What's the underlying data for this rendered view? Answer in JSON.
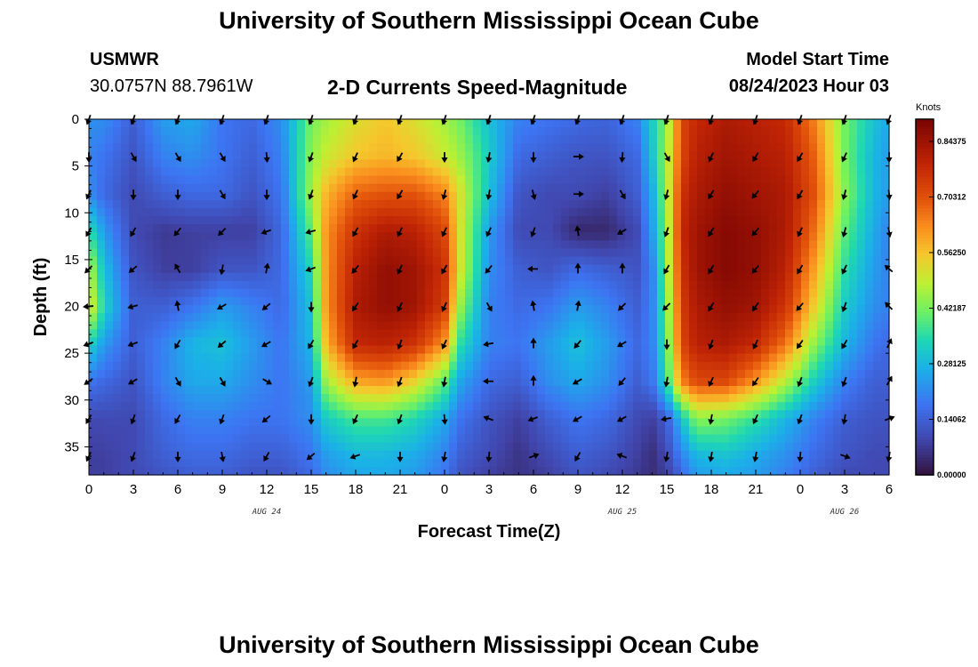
{
  "header": {
    "title": "University of Southern Mississippi Ocean Cube",
    "station": "USMWR",
    "coords": "30.0757N  88.7961W",
    "plot_title": "2-D Currents Speed-Magnitude",
    "model_label": "Model Start Time",
    "model_time": "08/24/2023 Hour 03"
  },
  "footer": {
    "title": "University of Southern Mississippi Ocean Cube"
  },
  "chart_data": {
    "type": "heatmap",
    "subtype": "current speed with direction vectors",
    "title": "2-D Currents Speed-Magnitude",
    "xlabel": "Forecast Time(Z)",
    "ylabel": "Depth (ft)",
    "x_range_hours": [
      0,
      54
    ],
    "y_range_ft": [
      0,
      38
    ],
    "x_ticks": [
      {
        "h": 0,
        "label": "0"
      },
      {
        "h": 3,
        "label": "3"
      },
      {
        "h": 6,
        "label": "6"
      },
      {
        "h": 9,
        "label": "9"
      },
      {
        "h": 12,
        "label": "12"
      },
      {
        "h": 15,
        "label": "15"
      },
      {
        "h": 18,
        "label": "18"
      },
      {
        "h": 21,
        "label": "21"
      },
      {
        "h": 24,
        "label": "0"
      },
      {
        "h": 27,
        "label": "3"
      },
      {
        "h": 30,
        "label": "6"
      },
      {
        "h": 33,
        "label": "9"
      },
      {
        "h": 36,
        "label": "12"
      },
      {
        "h": 39,
        "label": "15"
      },
      {
        "h": 42,
        "label": "18"
      },
      {
        "h": 45,
        "label": "21"
      },
      {
        "h": 48,
        "label": "0"
      },
      {
        "h": 51,
        "label": "3"
      },
      {
        "h": 54,
        "label": "6"
      }
    ],
    "y_ticks": [
      0,
      5,
      10,
      15,
      20,
      25,
      30,
      35
    ],
    "date_labels": [
      {
        "h": 12,
        "label": "AUG 24"
      },
      {
        "h": 36,
        "label": "AUG 25"
      },
      {
        "h": 51,
        "label": "AUG 26"
      }
    ],
    "colorbar": {
      "title": "Knots",
      "min": 0,
      "max": 0.9,
      "ticks": [
        {
          "v": 0.0,
          "label": "0.00000"
        },
        {
          "v": 0.140625,
          "label": "0.14062"
        },
        {
          "v": 0.28125,
          "label": "0.28125"
        },
        {
          "v": 0.421875,
          "label": "0.42187"
        },
        {
          "v": 0.5625,
          "label": "0.56250"
        },
        {
          "v": 0.703125,
          "label": "0.70312"
        },
        {
          "v": 0.84375,
          "label": "0.84375"
        }
      ]
    },
    "speed_hours": [
      0,
      1,
      3,
      5,
      7,
      9,
      11,
      13,
      15,
      16,
      18,
      20,
      22,
      24,
      25,
      27,
      29,
      31,
      33,
      35,
      37,
      38,
      39,
      40,
      41,
      43,
      45,
      47,
      49,
      51,
      53,
      54
    ],
    "speed_depths": [
      0,
      4,
      8,
      12,
      16,
      20,
      24,
      28,
      32,
      36,
      38
    ],
    "speed_knots": [
      [
        0.22,
        0.22,
        0.14,
        0.24,
        0.26,
        0.18,
        0.16,
        0.22,
        0.42,
        0.46,
        0.52,
        0.56,
        0.52,
        0.46,
        0.42,
        0.3,
        0.2,
        0.18,
        0.16,
        0.15,
        0.2,
        0.32,
        0.44,
        0.72,
        0.78,
        0.82,
        0.8,
        0.78,
        0.64,
        0.42,
        0.3,
        0.26
      ],
      [
        0.2,
        0.18,
        0.12,
        0.2,
        0.22,
        0.18,
        0.14,
        0.2,
        0.44,
        0.5,
        0.56,
        0.58,
        0.56,
        0.5,
        0.46,
        0.32,
        0.16,
        0.14,
        0.12,
        0.12,
        0.16,
        0.3,
        0.46,
        0.72,
        0.8,
        0.84,
        0.82,
        0.8,
        0.68,
        0.42,
        0.28,
        0.24
      ],
      [
        0.22,
        0.16,
        0.1,
        0.14,
        0.16,
        0.16,
        0.12,
        0.18,
        0.46,
        0.58,
        0.68,
        0.7,
        0.7,
        0.64,
        0.52,
        0.3,
        0.12,
        0.1,
        0.1,
        0.08,
        0.14,
        0.26,
        0.46,
        0.76,
        0.82,
        0.86,
        0.84,
        0.82,
        0.7,
        0.44,
        0.28,
        0.24
      ],
      [
        0.36,
        0.24,
        0.1,
        0.07,
        0.08,
        0.08,
        0.08,
        0.16,
        0.4,
        0.62,
        0.76,
        0.82,
        0.8,
        0.72,
        0.52,
        0.24,
        0.1,
        0.1,
        0.04,
        0.04,
        0.1,
        0.24,
        0.44,
        0.78,
        0.84,
        0.88,
        0.86,
        0.82,
        0.66,
        0.4,
        0.26,
        0.2
      ],
      [
        0.48,
        0.3,
        0.12,
        0.08,
        0.08,
        0.12,
        0.12,
        0.16,
        0.34,
        0.62,
        0.8,
        0.86,
        0.84,
        0.76,
        0.52,
        0.22,
        0.14,
        0.12,
        0.16,
        0.14,
        0.12,
        0.2,
        0.44,
        0.76,
        0.84,
        0.88,
        0.86,
        0.8,
        0.6,
        0.36,
        0.24,
        0.2
      ],
      [
        0.54,
        0.34,
        0.14,
        0.14,
        0.18,
        0.24,
        0.2,
        0.16,
        0.3,
        0.62,
        0.82,
        0.86,
        0.84,
        0.74,
        0.46,
        0.2,
        0.16,
        0.18,
        0.24,
        0.2,
        0.14,
        0.2,
        0.42,
        0.74,
        0.82,
        0.86,
        0.84,
        0.76,
        0.54,
        0.32,
        0.22,
        0.2
      ],
      [
        0.34,
        0.24,
        0.14,
        0.2,
        0.28,
        0.3,
        0.24,
        0.18,
        0.28,
        0.58,
        0.78,
        0.8,
        0.76,
        0.62,
        0.36,
        0.2,
        0.18,
        0.24,
        0.3,
        0.24,
        0.16,
        0.2,
        0.4,
        0.72,
        0.8,
        0.82,
        0.78,
        0.66,
        0.44,
        0.28,
        0.18,
        0.16
      ],
      [
        0.18,
        0.16,
        0.12,
        0.2,
        0.26,
        0.26,
        0.22,
        0.18,
        0.24,
        0.46,
        0.6,
        0.62,
        0.54,
        0.4,
        0.26,
        0.16,
        0.14,
        0.22,
        0.26,
        0.22,
        0.14,
        0.18,
        0.36,
        0.64,
        0.72,
        0.72,
        0.62,
        0.48,
        0.32,
        0.2,
        0.14,
        0.14
      ],
      [
        0.1,
        0.1,
        0.1,
        0.16,
        0.2,
        0.2,
        0.18,
        0.18,
        0.22,
        0.32,
        0.38,
        0.38,
        0.34,
        0.26,
        0.18,
        0.12,
        0.08,
        0.14,
        0.18,
        0.16,
        0.1,
        0.08,
        0.14,
        0.3,
        0.44,
        0.42,
        0.36,
        0.28,
        0.2,
        0.14,
        0.12,
        0.12
      ],
      [
        0.08,
        0.08,
        0.1,
        0.14,
        0.16,
        0.16,
        0.14,
        0.14,
        0.18,
        0.24,
        0.28,
        0.28,
        0.26,
        0.2,
        0.14,
        0.1,
        0.06,
        0.1,
        0.14,
        0.12,
        0.08,
        0.05,
        0.1,
        0.2,
        0.28,
        0.3,
        0.26,
        0.22,
        0.16,
        0.12,
        0.1,
        0.1
      ],
      [
        0.08,
        0.08,
        0.1,
        0.12,
        0.14,
        0.14,
        0.12,
        0.12,
        0.16,
        0.22,
        0.26,
        0.26,
        0.24,
        0.18,
        0.12,
        0.08,
        0.06,
        0.08,
        0.12,
        0.1,
        0.07,
        0.05,
        0.08,
        0.16,
        0.24,
        0.26,
        0.24,
        0.2,
        0.14,
        0.1,
        0.1,
        0.1
      ]
    ],
    "vector_hours": [
      0,
      3,
      6,
      9,
      12,
      15,
      18,
      21,
      24,
      27,
      30,
      33,
      36,
      39,
      42,
      45,
      48,
      51,
      54
    ],
    "vector_depths": [
      0,
      4,
      8,
      12,
      16,
      20,
      24,
      28,
      32,
      36
    ],
    "vector_directions_deg": [
      [
        110,
        110,
        110,
        110,
        110,
        110,
        110,
        110,
        110,
        110,
        110,
        110,
        110,
        110,
        110,
        110,
        110,
        110,
        110
      ],
      [
        90,
        60,
        60,
        60,
        85,
        110,
        115,
        120,
        90,
        100,
        90,
        0,
        95,
        60,
        115,
        120,
        120,
        115,
        90
      ],
      [
        115,
        90,
        90,
        60,
        90,
        110,
        115,
        120,
        105,
        100,
        75,
        0,
        60,
        105,
        120,
        130,
        120,
        105,
        85
      ],
      [
        120,
        120,
        130,
        135,
        160,
        165,
        120,
        115,
        115,
        115,
        110,
        260,
        150,
        110,
        120,
        130,
        115,
        105,
        80
      ],
      [
        135,
        140,
        240,
        100,
        280,
        160,
        130,
        115,
        120,
        130,
        180,
        270,
        270,
        120,
        120,
        130,
        120,
        115,
        220
      ],
      [
        175,
        165,
        260,
        150,
        140,
        90,
        125,
        115,
        115,
        60,
        260,
        280,
        135,
        135,
        120,
        125,
        130,
        110,
        225
      ],
      [
        160,
        160,
        120,
        140,
        150,
        120,
        120,
        110,
        115,
        170,
        270,
        130,
        150,
        90,
        110,
        115,
        125,
        120,
        295
      ],
      [
        145,
        150,
        60,
        60,
        30,
        110,
        100,
        110,
        100,
        180,
        270,
        150,
        130,
        100,
        115,
        125,
        110,
        110,
        300
      ],
      [
        120,
        110,
        120,
        110,
        140,
        90,
        115,
        110,
        85,
        200,
        160,
        150,
        150,
        170,
        100,
        115,
        110,
        100,
        340
      ],
      [
        115,
        110,
        90,
        80,
        120,
        140,
        160,
        90,
        100,
        95,
        340,
        120,
        200,
        100,
        100,
        100,
        95,
        20,
        100
      ]
    ]
  }
}
